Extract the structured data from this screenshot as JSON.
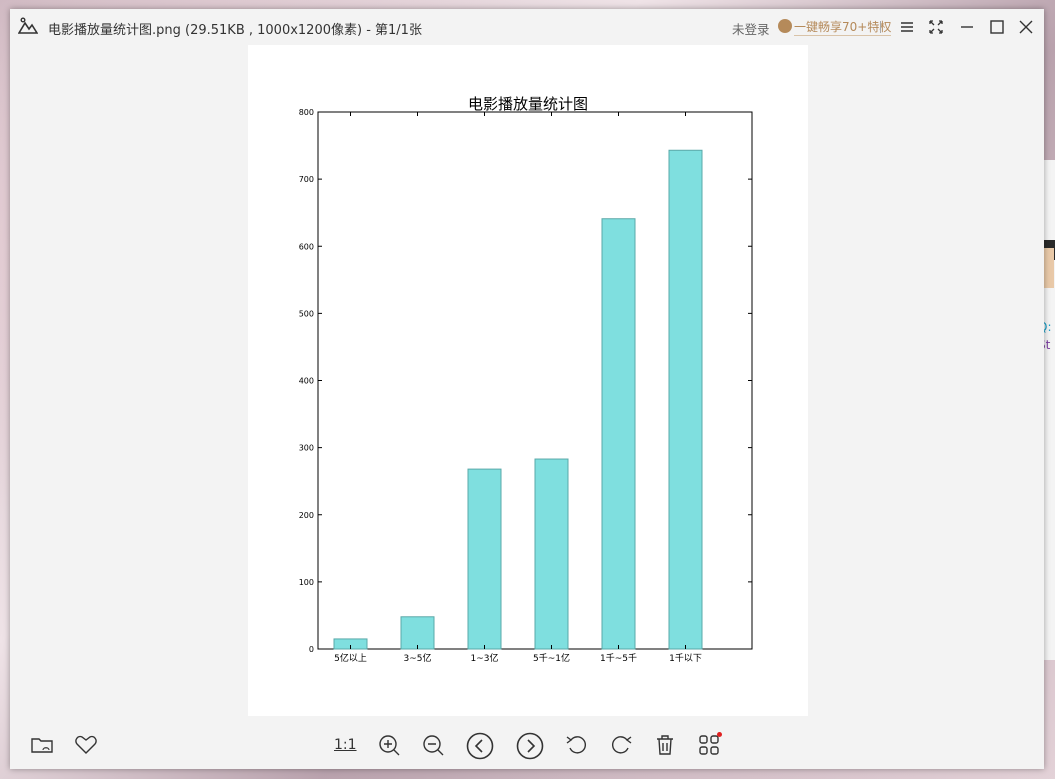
{
  "window": {
    "title": "电影播放量统计图.png (29.51KB , 1000x1200像素) - 第1/1张",
    "login_label": "未登录",
    "vip_label": "一键畅享70+特权"
  },
  "sliver": {
    "text1": "Q:",
    "text2": "St"
  },
  "toolbar": {
    "one_to_one_label": "1:1"
  },
  "chart_data": {
    "type": "bar",
    "title": "电影播放量统计图",
    "categories": [
      "5亿以上",
      "3~5亿",
      "1~3亿",
      "5千~1亿",
      "1千~5千",
      "1千以下"
    ],
    "values": [
      15,
      48,
      268,
      283,
      641,
      743
    ],
    "ylim": [
      0,
      800
    ],
    "yticks": [
      0,
      100,
      200,
      300,
      400,
      500,
      600,
      700,
      800
    ],
    "bar_color": "#7fdfdf",
    "bar_edge": "#5aa8a8",
    "xlabel": "",
    "ylabel": "",
    "grid": false
  }
}
